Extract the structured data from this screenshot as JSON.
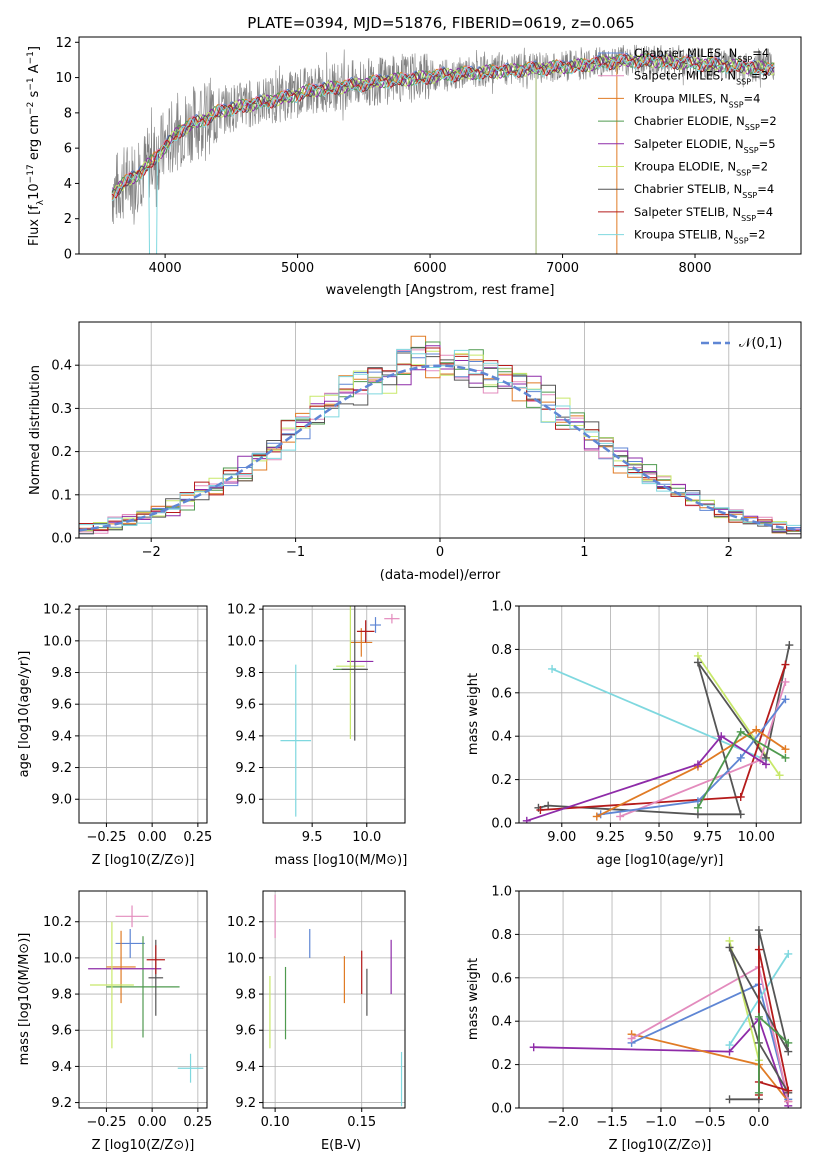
{
  "chart_data": [
    {
      "type": "line",
      "title": "PLATE=0394, MJD=51876, FIBERID=0619, z=0.065",
      "xlabel": "wavelength [Angstrom, rest frame]",
      "ylabel": "Flux [f_λ10^-17 erg cm^-2 s^-1 A^-1]",
      "xlim": [
        3350,
        8800
      ],
      "ylim": [
        0,
        12.3
      ],
      "xticks": [
        4000,
        5000,
        6000,
        7000,
        8000
      ],
      "yticks": [
        0,
        2,
        4,
        6,
        8,
        10,
        12
      ],
      "legend_position": "upper right",
      "series": [
        {
          "name": "Chabrier MILES, N_SSP=4",
          "color": "#5f86d4"
        },
        {
          "name": "Salpeter MILES, N_SSP=3",
          "color": "#e38bbd"
        },
        {
          "name": "Kroupa MILES, N_SSP=4",
          "color": "#e07b25"
        },
        {
          "name": "Chabrier ELODIE, N_SSP=2",
          "color": "#4f9a4f"
        },
        {
          "name": "Salpeter ELODIE, N_SSP=5",
          "color": "#8e2ba8"
        },
        {
          "name": "Kroupa ELODIE, N_SSP=2",
          "color": "#c8e86a"
        },
        {
          "name": "Chabrier STELIB, N_SSP=4",
          "color": "#555555"
        },
        {
          "name": "Salpeter STELIB, N_SSP=4",
          "color": "#b51b1b"
        },
        {
          "name": "Kroupa STELIB, N_SSP=2",
          "color": "#7fd8df"
        }
      ],
      "data_color": "#808080",
      "model_envelope": {
        "x": [
          3600,
          3700,
          3800,
          3900,
          4000,
          4100,
          4200,
          4300,
          4400,
          4500,
          4700,
          4900,
          5100,
          5300,
          5500,
          5700,
          5900,
          6100,
          6300,
          6500,
          6700,
          6900,
          7100,
          7300,
          7500,
          7700,
          7900,
          8100,
          8300,
          8500,
          8600
        ],
        "y": [
          3.5,
          4.1,
          4.6,
          5.3,
          6.1,
          7.0,
          7.4,
          7.7,
          8.1,
          8.3,
          8.6,
          8.9,
          9.3,
          9.5,
          9.7,
          9.9,
          10.0,
          10.2,
          10.3,
          10.4,
          10.5,
          10.6,
          10.7,
          10.9,
          11.0,
          11.0,
          10.9,
          10.8,
          10.7,
          10.6,
          10.6
        ]
      }
    },
    {
      "type": "bar",
      "xlabel": "(data-model)/error",
      "ylabel": "Normed distribution",
      "xlim": [
        -2.5,
        2.5
      ],
      "ylim": [
        0,
        0.5
      ],
      "xticks": [
        -2,
        -1,
        0,
        1,
        2
      ],
      "yticks": [
        0.0,
        0.1,
        0.2,
        0.3,
        0.4
      ],
      "grid": true,
      "legend_position": "upper right",
      "reference": {
        "name": "𝒩(0,1)",
        "color": "#5f86d4"
      },
      "bin_width": 0.1
    },
    {
      "type": "scatter",
      "xlabel": "Z [log10(Z/Z⊙)]",
      "ylabel": "age  [log10(age/yr)]",
      "xlim": [
        -0.4,
        0.3
      ],
      "ylim": [
        8.85,
        10.22
      ],
      "xticks": [
        -0.25,
        0.0,
        0.25
      ],
      "yticks": [
        9.0,
        9.2,
        9.4,
        9.6,
        9.8,
        10.0,
        10.2
      ],
      "grid": true,
      "points": [
        {
          "c": "#5f86d4",
          "x": -0.12,
          "y": 10.1,
          "ex": 0.08,
          "ey": 0.05
        },
        {
          "c": "#e38bbd",
          "x": -0.11,
          "y": 10.14,
          "ex": 0.09,
          "ey": 0.03
        },
        {
          "c": "#e07b25",
          "x": -0.16,
          "y": 9.99,
          "ex": 0.08,
          "ey": 0.09
        },
        {
          "c": "#4f9a4f",
          "x": -0.29,
          "y": 9.82,
          "ex": 0.0,
          "ey": 0.0
        },
        {
          "c": "#8e2ba8",
          "x": -0.15,
          "y": 9.87,
          "ex": 0.2,
          "ey": 0.0
        },
        {
          "c": "#c8e86a",
          "x": -0.22,
          "y": 9.84,
          "ex": 0.12,
          "ey": 0.46
        },
        {
          "c": "#555555",
          "x": -0.05,
          "y": 9.82,
          "ex": 0.2,
          "ey": 0.45
        },
        {
          "c": "#b51b1b",
          "x": 0.02,
          "y": 10.06,
          "ex": 0.05,
          "ey": 0.07
        },
        {
          "c": "#7fd8df",
          "x": 0.21,
          "y": 9.37,
          "ex": 0.07,
          "ey": 0.48
        }
      ]
    },
    {
      "type": "scatter",
      "xlabel": "mass [log10(M/M⊙)]",
      "ylabel": "",
      "xlim": [
        9.05,
        10.35
      ],
      "ylim": [
        8.85,
        10.22
      ],
      "xticks": [
        9.5,
        10.0
      ],
      "yticks": [
        9.0,
        9.2,
        9.4,
        9.6,
        9.8,
        10.0,
        10.2
      ],
      "grid": true,
      "points": [
        {
          "c": "#5f86d4",
          "x": 10.08,
          "y": 10.1,
          "ex": 0.05,
          "ey": 0.05
        },
        {
          "c": "#e38bbd",
          "x": 10.23,
          "y": 10.14,
          "ex": 0.07,
          "ey": 0.03
        },
        {
          "c": "#e07b25",
          "x": 9.95,
          "y": 9.99,
          "ex": 0.1,
          "ey": 0.09
        },
        {
          "c": "#4f9a4f",
          "x": 9.84,
          "y": 9.82,
          "ex": 0.15,
          "ey": 0.0
        },
        {
          "c": "#8e2ba8",
          "x": 9.94,
          "y": 9.87,
          "ex": 0.12,
          "ey": 0.0
        },
        {
          "c": "#c8e86a",
          "x": 9.85,
          "y": 9.84,
          "ex": 0.13,
          "ey": 0.46
        },
        {
          "c": "#555555",
          "x": 9.89,
          "y": 9.82,
          "ex": 0.12,
          "ey": 0.45
        },
        {
          "c": "#b51b1b",
          "x": 9.99,
          "y": 10.06,
          "ex": 0.08,
          "ey": 0.07
        },
        {
          "c": "#7fd8df",
          "x": 9.35,
          "y": 9.37,
          "ex": 0.14,
          "ey": 0.48
        }
      ]
    },
    {
      "type": "line",
      "xlabel": "age  [log10(age/yr)]",
      "ylabel": "mass weight",
      "xlim": [
        8.78,
        10.23
      ],
      "ylim": [
        0,
        1.0
      ],
      "xticks": [
        9.0,
        9.25,
        9.5,
        9.75,
        10.0
      ],
      "yticks": [
        0.0,
        0.2,
        0.4,
        0.6,
        0.8,
        1.0
      ],
      "grid": true,
      "series": [
        {
          "c": "#7fd8df",
          "pts": [
            [
              8.95,
              0.71
            ],
            [
              10.05,
              0.29
            ]
          ]
        },
        {
          "c": "#c8e86a",
          "pts": [
            [
              9.7,
              0.77
            ],
            [
              10.12,
              0.22
            ]
          ]
        },
        {
          "c": "#555555",
          "pts": [
            [
              8.88,
              0.07
            ],
            [
              8.93,
              0.08
            ],
            [
              9.7,
              0.04
            ],
            [
              9.92,
              0.04
            ],
            [
              9.7,
              0.74
            ],
            [
              10.05,
              0.3
            ],
            [
              10.17,
              0.82
            ]
          ]
        },
        {
          "c": "#b51b1b",
          "pts": [
            [
              8.89,
              0.06
            ],
            [
              9.92,
              0.12
            ],
            [
              10.15,
              0.73
            ]
          ]
        },
        {
          "c": "#e38bbd",
          "pts": [
            [
              9.3,
              0.03
            ],
            [
              10.02,
              0.29
            ],
            [
              10.15,
              0.65
            ]
          ]
        },
        {
          "c": "#5f86d4",
          "pts": [
            [
              9.2,
              0.04
            ],
            [
              9.7,
              0.1
            ],
            [
              9.92,
              0.3
            ],
            [
              10.15,
              0.57
            ]
          ]
        },
        {
          "c": "#e07b25",
          "pts": [
            [
              9.18,
              0.03
            ],
            [
              9.7,
              0.26
            ],
            [
              10.0,
              0.43
            ],
            [
              10.15,
              0.34
            ]
          ]
        },
        {
          "c": "#8e2ba8",
          "pts": [
            [
              8.82,
              0.01
            ],
            [
              9.7,
              0.27
            ],
            [
              9.82,
              0.4
            ],
            [
              10.05,
              0.27
            ]
          ]
        },
        {
          "c": "#4f9a4f",
          "pts": [
            [
              9.7,
              0.07
            ],
            [
              9.92,
              0.42
            ],
            [
              10.15,
              0.3
            ]
          ]
        }
      ]
    },
    {
      "type": "scatter",
      "xlabel": "Z [log10(Z/Z⊙)]",
      "ylabel": "mass [log10(M/M⊙)]",
      "xlim": [
        -0.4,
        0.3
      ],
      "ylim": [
        9.17,
        10.37
      ],
      "xticks": [
        -0.25,
        0.0,
        0.25
      ],
      "yticks": [
        9.2,
        9.4,
        9.6,
        9.8,
        10.0,
        10.2
      ],
      "grid": true,
      "points": [
        {
          "c": "#5f86d4",
          "x": -0.12,
          "y": 10.08,
          "ex": 0.08,
          "ey": 0.08
        },
        {
          "c": "#e38bbd",
          "x": -0.11,
          "y": 10.23,
          "ex": 0.09,
          "ey": 0.06
        },
        {
          "c": "#e07b25",
          "x": -0.17,
          "y": 9.95,
          "ex": 0.08,
          "ey": 0.2
        },
        {
          "c": "#4f9a4f",
          "x": -0.05,
          "y": 9.84,
          "ex": 0.2,
          "ey": 0.28
        },
        {
          "c": "#8e2ba8",
          "x": -0.15,
          "y": 9.94,
          "ex": 0.2,
          "ey": 0.0
        },
        {
          "c": "#c8e86a",
          "x": -0.22,
          "y": 9.85,
          "ex": 0.12,
          "ey": 0.35
        },
        {
          "c": "#555555",
          "x": 0.02,
          "y": 9.89,
          "ex": 0.04,
          "ey": 0.21
        },
        {
          "c": "#b51b1b",
          "x": 0.02,
          "y": 9.99,
          "ex": 0.05,
          "ey": 0.08
        },
        {
          "c": "#7fd8df",
          "x": 0.21,
          "y": 9.39,
          "ex": 0.07,
          "ey": 0.08
        }
      ]
    },
    {
      "type": "scatter",
      "xlabel": "E(B-V)",
      "ylabel": "",
      "xlim": [
        0.093,
        0.175
      ],
      "ylim": [
        9.17,
        10.37
      ],
      "xticks": [
        0.1,
        0.15
      ],
      "yticks": [
        9.2,
        9.4,
        9.6,
        9.8,
        10.0,
        10.2
      ],
      "grid": true,
      "points": [
        {
          "c": "#5f86d4",
          "x": 0.12,
          "y": 10.08,
          "ey": 0.08
        },
        {
          "c": "#e38bbd",
          "x": 0.1,
          "y": 10.23,
          "ey": 0.12
        },
        {
          "c": "#e07b25",
          "x": 0.14,
          "y": 9.88,
          "ey": 0.13
        },
        {
          "c": "#4f9a4f",
          "x": 0.106,
          "y": 9.75,
          "ey": 0.2
        },
        {
          "c": "#8e2ba8",
          "x": 0.167,
          "y": 9.95,
          "ey": 0.15
        },
        {
          "c": "#c8e86a",
          "x": 0.097,
          "y": 9.7,
          "ey": 0.2
        },
        {
          "c": "#555555",
          "x": 0.153,
          "y": 9.81,
          "ey": 0.13
        },
        {
          "c": "#b51b1b",
          "x": 0.15,
          "y": 9.92,
          "ey": 0.12
        },
        {
          "c": "#7fd8df",
          "x": 0.173,
          "y": 9.33,
          "ey": 0.15
        }
      ]
    },
    {
      "type": "line",
      "xlabel": "Z [log10(Z/Z⊙)]",
      "ylabel": "mass weight",
      "xlim": [
        -2.45,
        0.43
      ],
      "ylim": [
        0,
        1.0
      ],
      "xticks": [
        -2.0,
        -1.5,
        -1.0,
        -0.5,
        0.0
      ],
      "yticks": [
        0.0,
        0.2,
        0.4,
        0.6,
        0.8,
        1.0
      ],
      "grid": true,
      "series": [
        {
          "c": "#8e2ba8",
          "pts": [
            [
              -2.3,
              0.28
            ],
            [
              -0.3,
              0.26
            ],
            [
              0.0,
              0.41
            ],
            [
              0.3,
              0.01
            ]
          ]
        },
        {
          "c": "#e07b25",
          "pts": [
            [
              -1.3,
              0.34
            ],
            [
              0.0,
              0.2
            ],
            [
              0.3,
              0.03
            ]
          ]
        },
        {
          "c": "#5f86d4",
          "pts": [
            [
              -1.3,
              0.3
            ],
            [
              0.0,
              0.57
            ],
            [
              0.3,
              0.04
            ]
          ]
        },
        {
          "c": "#e38bbd",
          "pts": [
            [
              -1.3,
              0.32
            ],
            [
              0.0,
              0.65
            ],
            [
              0.3,
              0.03
            ]
          ]
        },
        {
          "c": "#c8e86a",
          "pts": [
            [
              -0.3,
              0.77
            ],
            [
              0.0,
              0.22
            ]
          ]
        },
        {
          "c": "#7fd8df",
          "pts": [
            [
              -0.3,
              0.29
            ],
            [
              0.3,
              0.71
            ]
          ]
        },
        {
          "c": "#555555",
          "pts": [
            [
              -0.3,
              0.04
            ],
            [
              0.0,
              0.04
            ],
            [
              0.0,
              0.82
            ],
            [
              0.3,
              0.26
            ],
            [
              -0.3,
              0.74
            ],
            [
              0.0,
              0.3
            ],
            [
              0.3,
              0.07
            ]
          ]
        },
        {
          "c": "#b51b1b",
          "pts": [
            [
              0.0,
              0.12
            ],
            [
              0.3,
              0.08
            ],
            [
              0.0,
              0.73
            ],
            [
              0.0,
              0.06
            ]
          ]
        },
        {
          "c": "#4f9a4f",
          "pts": [
            [
              0.0,
              0.07
            ],
            [
              0.0,
              0.42
            ],
            [
              0.3,
              0.3
            ]
          ]
        }
      ]
    }
  ]
}
